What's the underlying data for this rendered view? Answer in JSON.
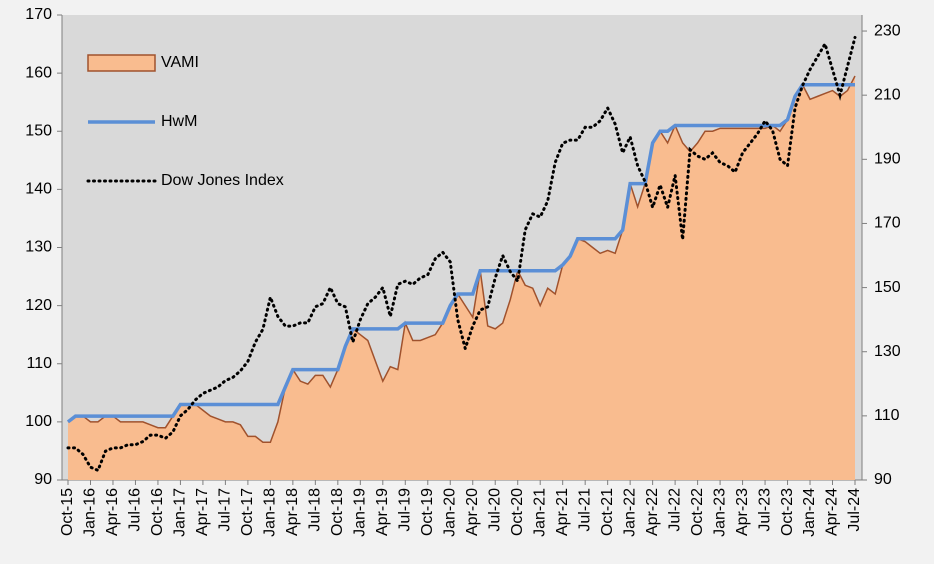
{
  "chart_data": {
    "type": "line",
    "categories": [
      "Oct-15",
      null,
      null,
      "Jan-16",
      null,
      null,
      "Apr-16",
      null,
      null,
      "Jul-16",
      null,
      null,
      "Oct-16",
      null,
      null,
      "Jan-17",
      null,
      null,
      "Apr-17",
      null,
      null,
      "Jul-17",
      null,
      null,
      "Oct-17",
      null,
      null,
      "Jan-18",
      null,
      null,
      "Apr-18",
      null,
      null,
      "Jul-18",
      null,
      null,
      "Oct-18",
      null,
      null,
      "Jan-19",
      null,
      null,
      "Apr-19",
      null,
      null,
      "Jul-19",
      null,
      null,
      "Oct-19",
      null,
      null,
      "Jan-20",
      null,
      null,
      "Apr-20",
      null,
      null,
      "Jul-20",
      null,
      null,
      "Oct-20",
      null,
      null,
      "Jan-21",
      null,
      null,
      "Apr-21",
      null,
      null,
      "Jul-21",
      null,
      null,
      "Oct-21",
      null,
      null,
      "Jan-22",
      null,
      null,
      "Apr-22",
      null,
      null,
      "Jul-22",
      null,
      null,
      "Oct-22",
      null,
      null,
      "Jan-23",
      null,
      null,
      "Apr-23",
      null,
      null,
      "Jul-23",
      null,
      null,
      "Oct-23",
      null,
      null,
      "Jan-24",
      null,
      null,
      "Apr-24",
      null,
      null,
      "Jul-24"
    ],
    "series": [
      {
        "name": "VAMI",
        "type": "area",
        "color": "#f9bc8f",
        "line_color": "#a0522d",
        "values": [
          100,
          101,
          101,
          100,
          100,
          101,
          101,
          100,
          100,
          100,
          100,
          99.5,
          99,
          99,
          101,
          103,
          103,
          103,
          102,
          101,
          100.5,
          100,
          100,
          99.5,
          97.5,
          97.5,
          96.5,
          96.5,
          100,
          106,
          109,
          107,
          106.5,
          108,
          108,
          106,
          109,
          113,
          116,
          115,
          114,
          110.5,
          107,
          109.5,
          109,
          117,
          114,
          114,
          114.5,
          115,
          117,
          120,
          122,
          120,
          118,
          126,
          116.5,
          116,
          117,
          121,
          126,
          123.5,
          123,
          120,
          123,
          122,
          127,
          128.5,
          131.5,
          131,
          130,
          129,
          129.5,
          129,
          133,
          141,
          137,
          141,
          148,
          150,
          148,
          151,
          148,
          146.5,
          148,
          150,
          150,
          150.5,
          150.5,
          150.5,
          150.5,
          150.5,
          150.5,
          150.5,
          151,
          150,
          152,
          156,
          158,
          155.5,
          156,
          156.5,
          157,
          156,
          157,
          159.5
        ]
      },
      {
        "name": "HwM",
        "type": "line",
        "color": "#5b8fd6",
        "values": [
          100,
          101,
          101,
          101,
          101,
          101,
          101,
          101,
          101,
          101,
          101,
          101,
          101,
          101,
          101,
          103,
          103,
          103,
          103,
          103,
          103,
          103,
          103,
          103,
          103,
          103,
          103,
          103,
          103,
          106,
          109,
          109,
          109,
          109,
          109,
          109,
          109,
          113,
          116,
          116,
          116,
          116,
          116,
          116,
          116,
          117,
          117,
          117,
          117,
          117,
          117,
          120,
          122,
          122,
          122,
          126,
          126,
          126,
          126,
          126,
          126,
          126,
          126,
          126,
          126,
          126,
          127,
          128.5,
          131.5,
          131.5,
          131.5,
          131.5,
          131.5,
          131.5,
          133,
          141,
          141,
          141,
          148,
          150,
          150,
          151,
          151,
          151,
          151,
          151,
          151,
          151,
          151,
          151,
          151,
          151,
          151,
          151,
          151,
          151,
          152,
          156,
          158,
          158,
          158,
          158,
          158,
          158,
          158,
          158
        ]
      },
      {
        "name": "Dow Jones Index",
        "type": "dotted",
        "color": "#000000",
        "axis": "y2",
        "values": [
          100,
          100,
          98,
          94,
          93,
          99,
          100,
          100,
          101,
          101,
          102,
          104,
          104,
          103,
          105,
          110,
          112,
          115,
          117,
          118,
          119,
          121,
          122,
          124,
          127,
          133,
          137,
          147,
          141,
          138,
          138,
          139,
          139,
          144,
          145,
          150,
          145,
          144,
          133,
          140,
          145,
          147,
          150,
          141,
          151,
          152,
          151,
          153,
          154,
          159,
          161,
          158,
          140,
          131,
          138,
          143,
          144,
          153,
          160,
          155,
          152,
          168,
          173,
          172,
          177,
          189,
          195,
          196,
          196,
          200,
          200,
          202,
          206,
          201,
          192,
          197,
          188,
          183,
          175,
          182,
          175,
          185,
          165,
          193,
          191,
          190,
          192,
          189,
          188,
          186,
          192,
          195,
          198,
          202,
          199,
          190,
          188,
          206,
          213,
          218,
          222,
          226,
          218,
          210,
          219,
          228
        ]
      }
    ],
    "ylim": [
      90,
      170
    ],
    "yticks": [
      90,
      100,
      110,
      120,
      130,
      140,
      150,
      160,
      170
    ],
    "y2lim": [
      90,
      235
    ],
    "y2ticks": [
      90,
      110,
      130,
      150,
      170,
      190,
      210,
      230
    ],
    "grid": false,
    "legend": "top-left"
  }
}
